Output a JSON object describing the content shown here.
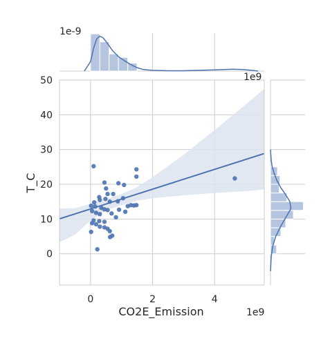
{
  "chart_data": {
    "type": "scatter",
    "kind": "jointplot-regression",
    "xlabel": "CO2E_Emission",
    "ylabel": "T_C",
    "x_offset_label": "1e9",
    "y_offset_label": "1e9",
    "marg_x_offset_label": "1e-9",
    "xlim": [
      -1.0,
      5.6
    ],
    "ylim": [
      -9,
      50
    ],
    "xticks": [
      0,
      2,
      4
    ],
    "xtick_labels": [
      "0",
      "2",
      "4"
    ],
    "yticks": [
      0,
      10,
      20,
      30,
      40,
      50
    ],
    "ytick_labels": [
      "0",
      "10",
      "20",
      "30",
      "40",
      "50"
    ],
    "grid": true,
    "colors": {
      "point": "#4c72b0",
      "line": "#4c72b0",
      "ci": "#dde4f0",
      "hist": "#b5c4df",
      "grid": "#cccccc"
    },
    "points": [
      {
        "x": 0.1,
        "y": 25.2
      },
      {
        "x": 0.45,
        "y": 20.5
      },
      {
        "x": 0.5,
        "y": 18.8
      },
      {
        "x": 0.9,
        "y": 20.3
      },
      {
        "x": 1.08,
        "y": 19.8
      },
      {
        "x": 1.48,
        "y": 24.3
      },
      {
        "x": 1.48,
        "y": 22.2
      },
      {
        "x": 0.28,
        "y": 16.3
      },
      {
        "x": 0.3,
        "y": 15.5
      },
      {
        "x": 0.55,
        "y": 17.2
      },
      {
        "x": 0.73,
        "y": 17.2
      },
      {
        "x": 1.05,
        "y": 16.0
      },
      {
        "x": 0.48,
        "y": 15.8
      },
      {
        "x": 0.62,
        "y": 15.0
      },
      {
        "x": 0.88,
        "y": 15.1
      },
      {
        "x": 0.12,
        "y": 14.8
      },
      {
        "x": 0.02,
        "y": 13.8
      },
      {
        "x": 0.15,
        "y": 13.6
      },
      {
        "x": 0.35,
        "y": 13.2
      },
      {
        "x": 0.45,
        "y": 12.8
      },
      {
        "x": 0.55,
        "y": 12.6
      },
      {
        "x": 0.92,
        "y": 12.7
      },
      {
        "x": 1.2,
        "y": 13.7
      },
      {
        "x": 1.3,
        "y": 14.0
      },
      {
        "x": 1.4,
        "y": 13.9
      },
      {
        "x": 1.48,
        "y": 14.0
      },
      {
        "x": 0.05,
        "y": 12.3
      },
      {
        "x": 0.18,
        "y": 11.8
      },
      {
        "x": 0.3,
        "y": 11.4
      },
      {
        "x": 0.68,
        "y": 11.6
      },
      {
        "x": 1.12,
        "y": 12.1
      },
      {
        "x": 0.82,
        "y": 10.5
      },
      {
        "x": 0.1,
        "y": 9.6
      },
      {
        "x": 0.28,
        "y": 9.4
      },
      {
        "x": 0.45,
        "y": 9.2
      },
      {
        "x": 0.05,
        "y": 8.8
      },
      {
        "x": 0.18,
        "y": 8.5
      },
      {
        "x": 0.3,
        "y": 7.8
      },
      {
        "x": 0.45,
        "y": 7.6
      },
      {
        "x": 0.55,
        "y": 7.2
      },
      {
        "x": 0.62,
        "y": 6.5
      },
      {
        "x": 0.02,
        "y": 6.3
      },
      {
        "x": 0.7,
        "y": 5.2
      },
      {
        "x": 0.63,
        "y": 4.8
      },
      {
        "x": 0.22,
        "y": 1.3
      },
      {
        "x": 4.65,
        "y": 21.7
      }
    ],
    "regression": {
      "intercept": 12.9,
      "slope": 2.85
    },
    "ci_band": {
      "x": [
        -1.0,
        -0.5,
        0.0,
        0.5,
        1.0,
        1.5,
        2.0,
        3.0,
        4.0,
        5.0,
        5.6
      ],
      "upper": [
        13.0,
        13.1,
        14.4,
        15.8,
        17.2,
        19.2,
        22.0,
        28.5,
        35.6,
        43.0,
        47.5
      ],
      "lower": [
        3.3,
        5.5,
        9.5,
        12.5,
        14.0,
        15.3,
        16.0,
        16.8,
        17.5,
        18.0,
        18.5
      ]
    },
    "marginal_x_hist": {
      "bins": [
        0.0,
        0.3,
        0.6,
        0.9,
        1.2,
        1.5
      ],
      "bin_width": 0.3,
      "density": [
        0.98,
        0.77,
        0.45,
        0.36,
        0.21,
        0.0
      ]
    },
    "marginal_x_kde": {
      "x": [
        -0.2,
        0.0,
        0.1,
        0.2,
        0.3,
        0.4,
        0.5,
        0.7,
        0.9,
        1.1,
        1.3,
        1.5,
        1.7,
        2.0,
        2.5,
        3.0,
        3.5,
        4.0,
        4.3,
        4.6,
        4.9,
        5.2,
        5.4
      ],
      "density": [
        0.0,
        0.25,
        0.6,
        0.85,
        0.92,
        0.88,
        0.78,
        0.55,
        0.38,
        0.27,
        0.17,
        0.09,
        0.04,
        0.02,
        0.01,
        0.01,
        0.02,
        0.03,
        0.04,
        0.05,
        0.04,
        0.02,
        0.0
      ]
    },
    "marginal_y_hist": {
      "bins": [
        0,
        2.5,
        5.0,
        7.5,
        10.0,
        12.5,
        15.0,
        17.5,
        20.0,
        22.5
      ],
      "bin_width": 2.5,
      "density": [
        0.035,
        0.022,
        0.06,
        0.088,
        0.132,
        0.19,
        0.095,
        0.05,
        0.055,
        0.04
      ]
    },
    "marginal_y_kde": {
      "y": [
        -5,
        -1,
        2,
        5,
        8,
        11,
        13,
        15,
        17,
        19,
        21,
        23,
        25,
        27,
        29,
        30
      ],
      "density": [
        0.0,
        0.004,
        0.012,
        0.03,
        0.06,
        0.095,
        0.118,
        0.112,
        0.088,
        0.06,
        0.038,
        0.022,
        0.01,
        0.004,
        0.001,
        0.0
      ]
    }
  }
}
